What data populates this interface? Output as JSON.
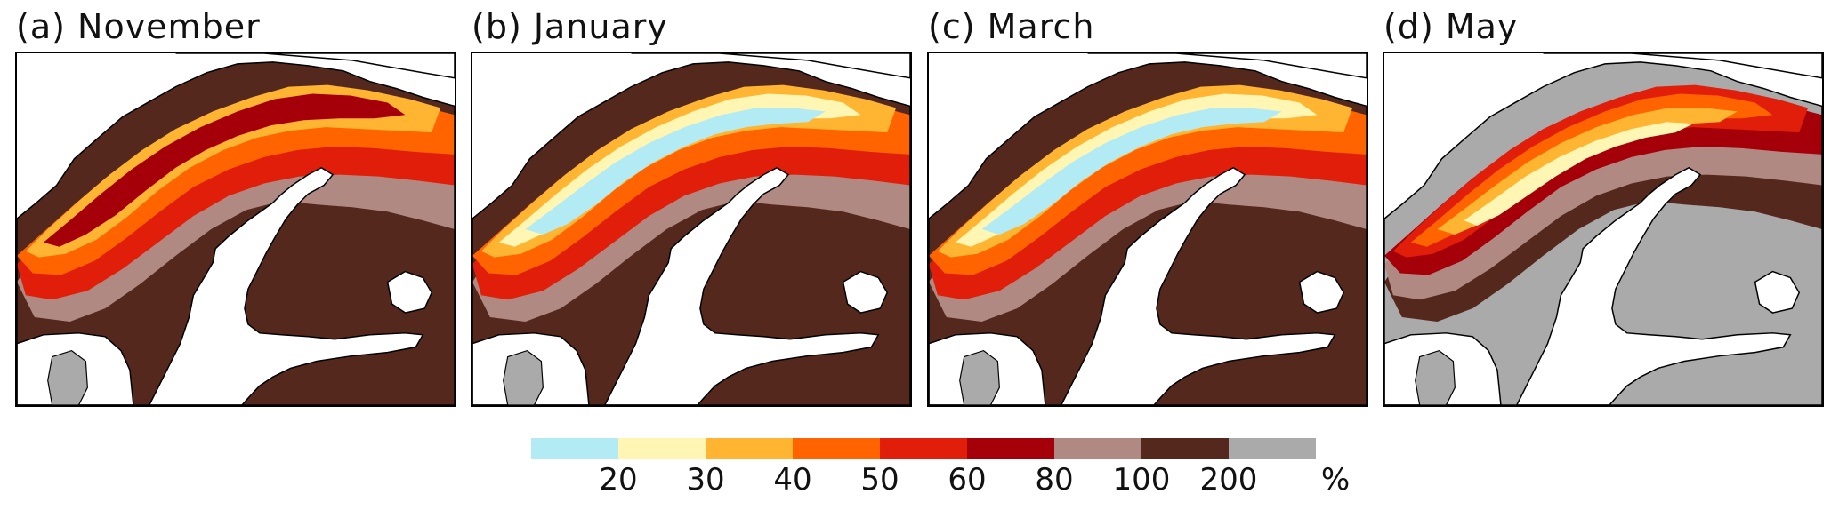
{
  "panels": [
    {
      "title": "(a) November",
      "month": "November"
    },
    {
      "title": "(b) January",
      "month": "January"
    },
    {
      "title": "(c) March",
      "month": "March"
    },
    {
      "title": "(d) May",
      "month": "May"
    }
  ],
  "legend": {
    "bins": [
      {
        "color": "#b3ebf5"
      },
      {
        "color": "#fff6b4"
      },
      {
        "color": "#ffb432"
      },
      {
        "color": "#ff6400"
      },
      {
        "color": "#e11e0a"
      },
      {
        "color": "#a5000a"
      },
      {
        "color": "#b08a82"
      },
      {
        "color": "#55281e"
      },
      {
        "color": "#aaaaaa"
      }
    ],
    "tick_labels": [
      "20",
      "30",
      "40",
      "50",
      "60",
      "80",
      "100",
      "200"
    ],
    "unit": "%"
  },
  "panel_schemes": {
    "November": {
      "sea": "#ffffff",
      "land_base": "#55281e",
      "zones": [
        "#b08a82",
        "#e11e0a",
        "#ff6400",
        "#ffb432",
        "#a5000a"
      ]
    },
    "January": {
      "sea": "#ffffff",
      "land_base": "#55281e",
      "zones": [
        "#b08a82",
        "#e11e0a",
        "#ff6400",
        "#ffb432",
        "#fff6b4",
        "#b3ebf5"
      ]
    },
    "March": {
      "sea": "#ffffff",
      "land_base": "#55281e",
      "zones": [
        "#b08a82",
        "#e11e0a",
        "#ff6400",
        "#ffb432",
        "#fff6b4",
        "#b3ebf5"
      ]
    },
    "May": {
      "sea": "#ffffff",
      "land_base": "#aaaaaa",
      "zones": [
        "#55281e",
        "#b08a82",
        "#a5000a",
        "#e11e0a",
        "#ff6400",
        "#ffb432",
        "#fff6b4"
      ]
    }
  }
}
